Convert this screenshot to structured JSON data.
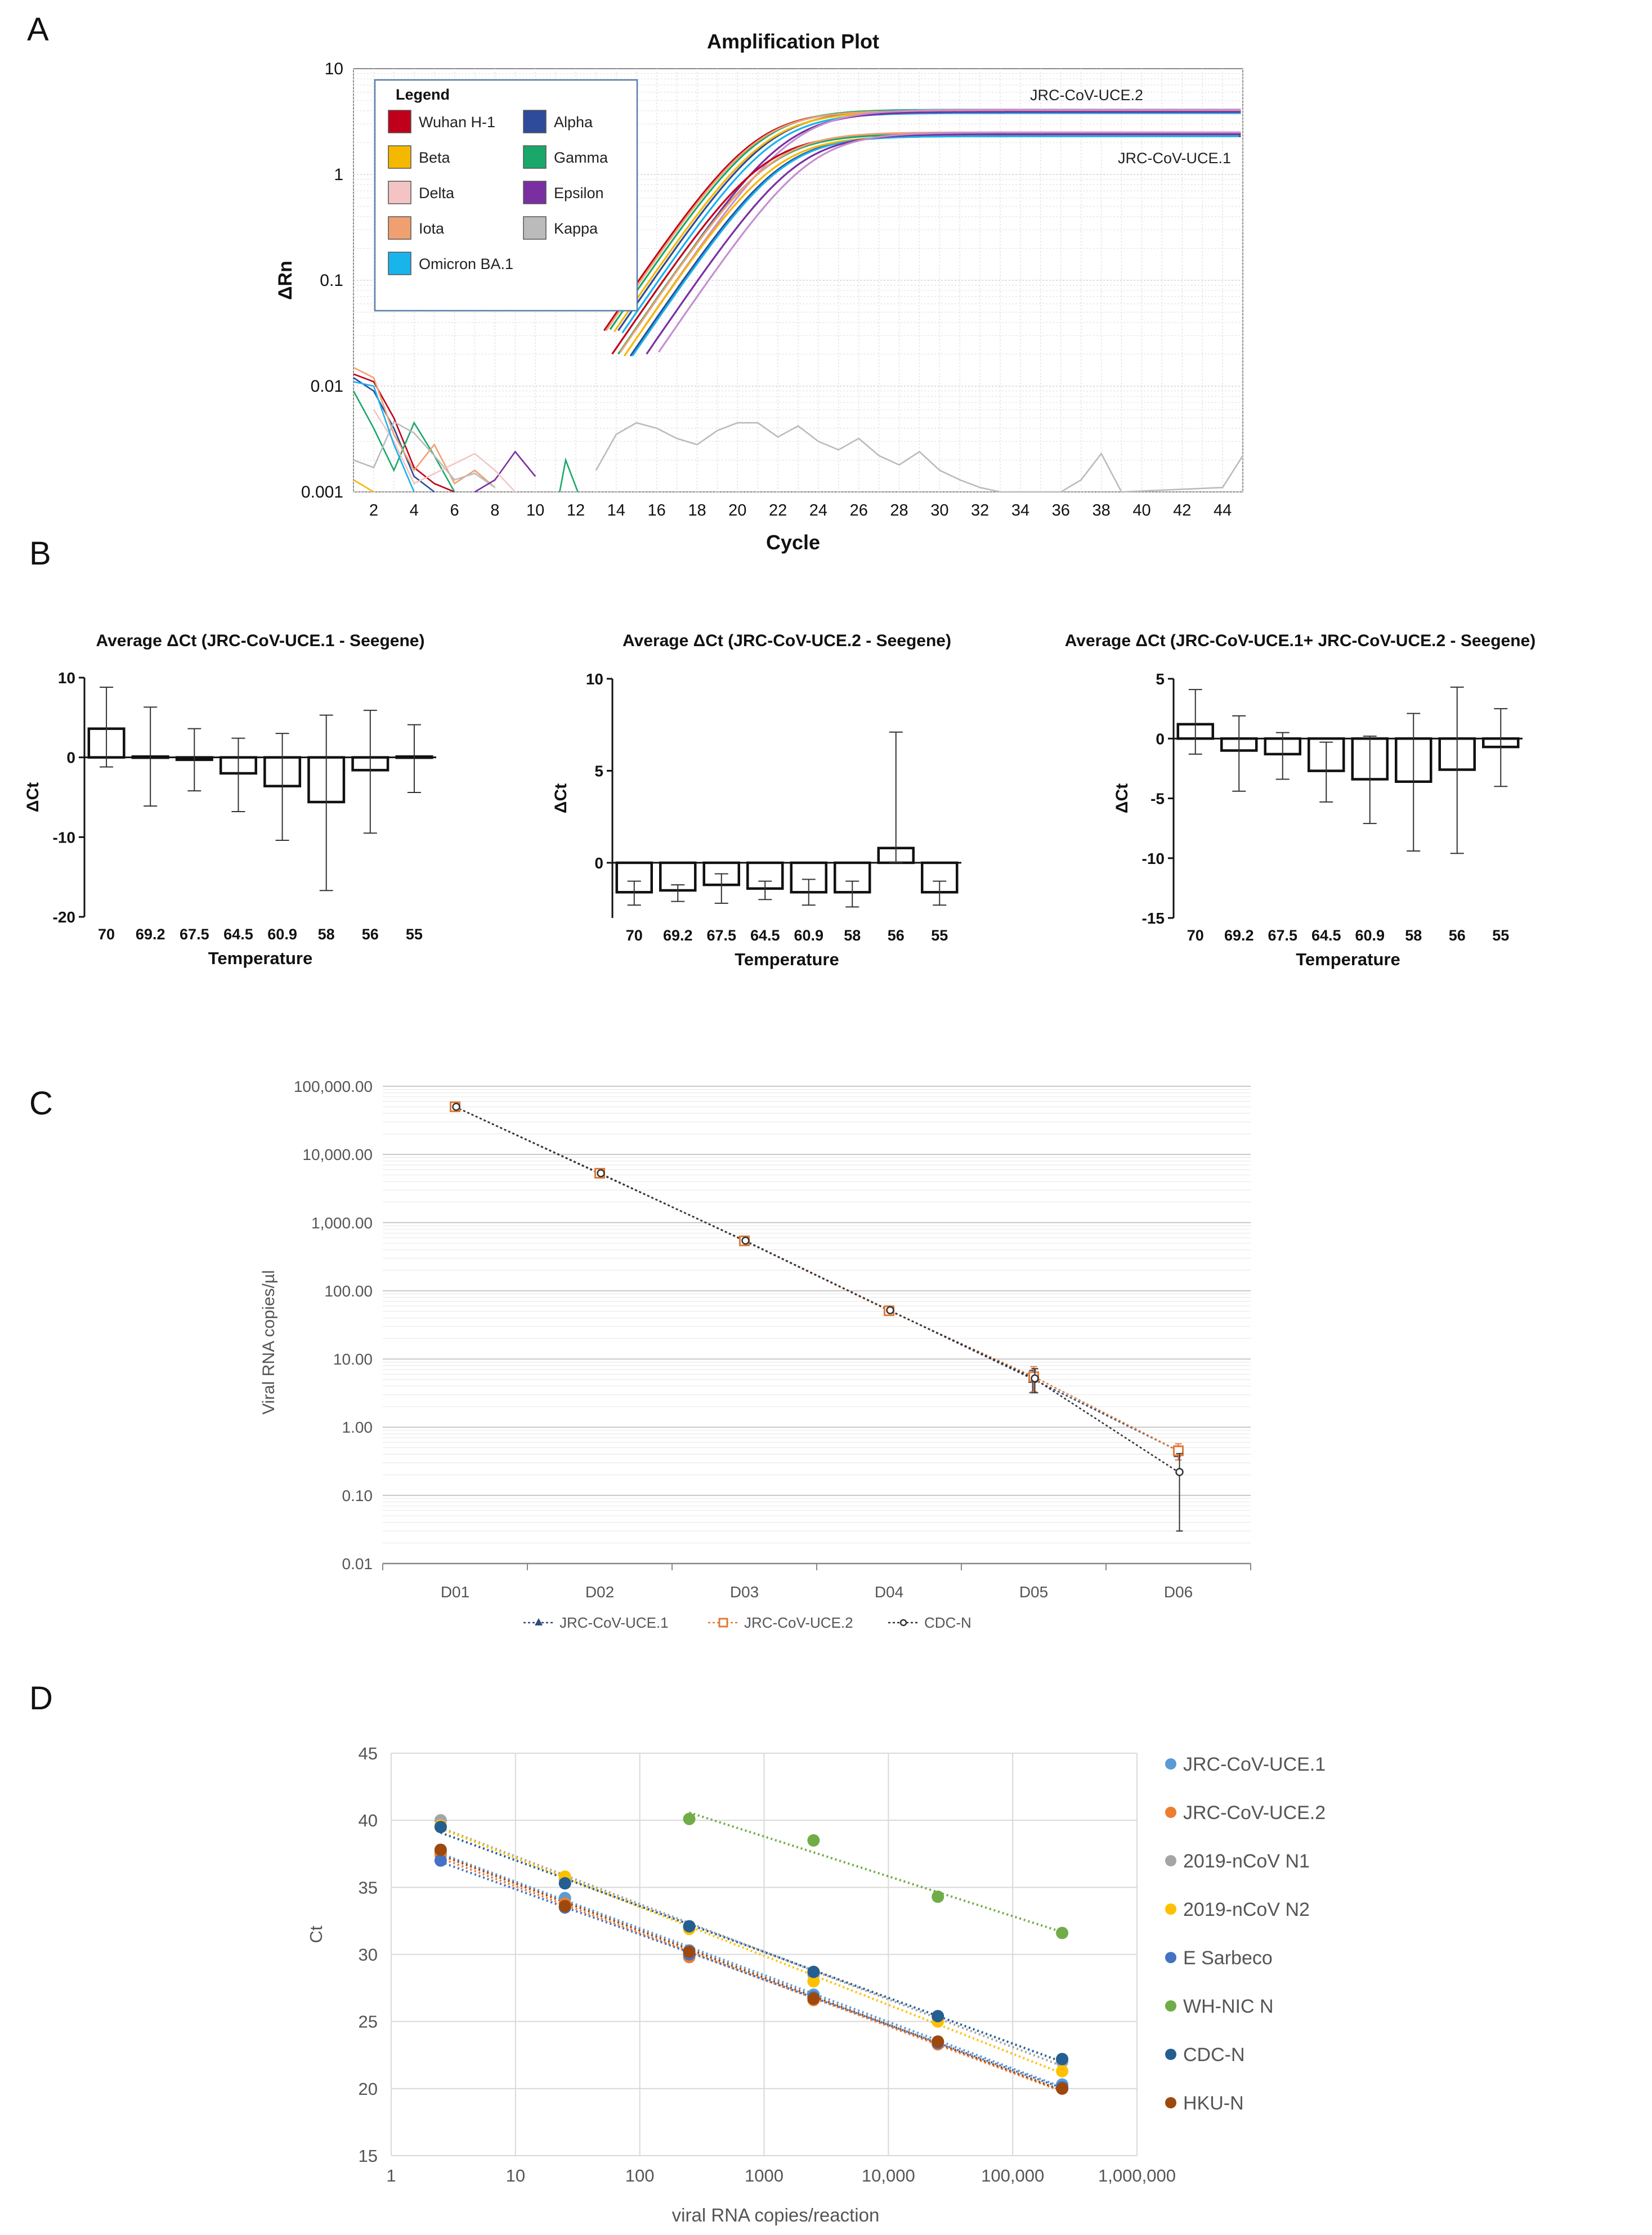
{
  "panels": {
    "a": "A",
    "b": "B",
    "c": "C",
    "d": "D"
  },
  "chart_data": [
    {
      "type": "line",
      "id": "amplification",
      "title": "Amplification Plot",
      "xlabel": "Cycle",
      "ylabel": "ΔRn",
      "yscale": "log",
      "ylim": [
        0.001,
        10
      ],
      "xlim": [
        1,
        45
      ],
      "xticks": [
        2,
        4,
        6,
        8,
        10,
        12,
        14,
        16,
        18,
        20,
        22,
        24,
        26,
        28,
        30,
        32,
        34,
        36,
        38,
        40,
        42,
        44
      ],
      "yticks": [
        0.001,
        0.01,
        0.1,
        1,
        10
      ],
      "ytick_labels": [
        "0.001",
        "0.01",
        "0.1",
        "1",
        "10"
      ],
      "legend_title": "Legend",
      "legend": [
        {
          "name": "Wuhan H-1",
          "color": "#c0001a"
        },
        {
          "name": "Alpha",
          "color": "#2d4b9a"
        },
        {
          "name": "Beta",
          "color": "#f5b800"
        },
        {
          "name": "Gamma",
          "color": "#1aa86a"
        },
        {
          "name": "Delta",
          "color": "#f4c4c4"
        },
        {
          "name": "Epsilon",
          "color": "#7a2fa0"
        },
        {
          "name": "Iota",
          "color": "#f0a070"
        },
        {
          "name": "Kappa",
          "color": "#bbbbbb"
        },
        {
          "name": "Omicron BA.1",
          "color": "#19b4ec"
        }
      ],
      "annotations": [
        "JRC-CoV-UCE.2",
        "JRC-CoV-UCE.1"
      ],
      "plateaus": {
        "JRC-CoV-UCE.2": 4.0,
        "JRC-CoV-UCE.1": 2.4
      },
      "curves": [
        {
          "color": "#c0001a",
          "ct": 17.6,
          "plateau": 4.0
        },
        {
          "color": "#2d4b9a",
          "ct": 18.3,
          "plateau": 4.0
        },
        {
          "color": "#1aa86a",
          "ct": 17.9,
          "plateau": 4.1
        },
        {
          "color": "#f5b800",
          "ct": 18.1,
          "plateau": 3.9
        },
        {
          "color": "#f0a070",
          "ct": 17.7,
          "plateau": 4.0
        },
        {
          "color": "#19b4ec",
          "ct": 18.5,
          "plateau": 3.8
        },
        {
          "color": "#7a2fa0",
          "ct": 19.1,
          "plateau": 3.9
        },
        {
          "color": "#c490d0",
          "ct": 19.5,
          "plateau": 4.1
        },
        {
          "color": "#c0001a",
          "ct": 18.0,
          "plateau": 2.4
        },
        {
          "color": "#2d4b9a",
          "ct": 18.9,
          "plateau": 2.3
        },
        {
          "color": "#1aa86a",
          "ct": 18.3,
          "plateau": 2.4
        },
        {
          "color": "#f5b800",
          "ct": 18.6,
          "plateau": 2.3
        },
        {
          "color": "#f0a070",
          "ct": 18.4,
          "plateau": 2.5
        },
        {
          "color": "#19b4ec",
          "ct": 19.0,
          "plateau": 2.3
        },
        {
          "color": "#7a2fa0",
          "ct": 19.7,
          "plateau": 2.4
        },
        {
          "color": "#c490d0",
          "ct": 20.3,
          "plateau": 2.5
        }
      ],
      "kappa_noise": [
        [
          13,
          0.0016
        ],
        [
          14,
          0.0035
        ],
        [
          15,
          0.0045
        ],
        [
          16,
          0.004
        ],
        [
          17,
          0.0032
        ],
        [
          18,
          0.0028
        ],
        [
          19,
          0.0038
        ],
        [
          20,
          0.0045
        ],
        [
          21,
          0.0045
        ],
        [
          22,
          0.0033
        ],
        [
          23,
          0.0042
        ],
        [
          24,
          0.003
        ],
        [
          25,
          0.0025
        ],
        [
          26,
          0.0032
        ],
        [
          27,
          0.0022
        ],
        [
          28,
          0.0018
        ],
        [
          29,
          0.0024
        ],
        [
          30,
          0.0016
        ],
        [
          31,
          0.0013
        ],
        [
          32,
          0.0011
        ],
        [
          33,
          0.001
        ],
        [
          36,
          0.001
        ],
        [
          37,
          0.0013
        ],
        [
          38,
          0.0023
        ],
        [
          39,
          0.001
        ],
        [
          44,
          0.0011
        ],
        [
          45,
          0.0022
        ]
      ],
      "early_noise": [
        {
          "color": "#c0001a",
          "points": [
            [
              1,
              0.013
            ],
            [
              2,
              0.011
            ],
            [
              3,
              0.005
            ],
            [
              4,
              0.0017
            ],
            [
              5,
              0.0012
            ],
            [
              6,
              0.001
            ]
          ]
        },
        {
          "color": "#2d4b9a",
          "points": [
            [
              1,
              0.012
            ],
            [
              2,
              0.009
            ],
            [
              3,
              0.004
            ],
            [
              4,
              0.0014
            ],
            [
              5,
              0.001
            ]
          ]
        },
        {
          "color": "#1aa86a",
          "points": [
            [
              1,
              0.009
            ],
            [
              2,
              0.004
            ],
            [
              3,
              0.0016
            ],
            [
              4,
              0.0045
            ],
            [
              5,
              0.0022
            ],
            [
              6,
              0.001
            ]
          ]
        },
        {
          "color": "#f0a070",
          "points": [
            [
              1,
              0.015
            ],
            [
              2,
              0.012
            ],
            [
              3,
              0.0035
            ],
            [
              4,
              0.0016
            ],
            [
              5,
              0.0028
            ],
            [
              6,
              0.0012
            ],
            [
              7,
              0.0016
            ],
            [
              8,
              0.0011
            ]
          ]
        },
        {
          "color": "#bbbbbb",
          "points": [
            [
              1,
              0.002
            ],
            [
              2,
              0.0017
            ],
            [
              3,
              0.0046
            ],
            [
              4,
              0.0036
            ],
            [
              5,
              0.0022
            ],
            [
              6,
              0.0013
            ],
            [
              7,
              0.0015
            ],
            [
              8,
              0.0011
            ]
          ]
        },
        {
          "color": "#7a2fa0",
          "points": [
            [
              7,
              0.001
            ],
            [
              8,
              0.0013
            ],
            [
              9,
              0.0024
            ],
            [
              10,
              0.0014
            ]
          ]
        },
        {
          "color": "#f4c4c4",
          "points": [
            [
              2,
              0.006
            ],
            [
              3,
              0.003
            ],
            [
              4,
              0.0012
            ],
            [
              7,
              0.0023
            ],
            [
              8,
              0.0016
            ],
            [
              9,
              0.001
            ]
          ]
        },
        {
          "color": "#19b4ec",
          "points": [
            [
              1,
              0.011
            ],
            [
              2,
              0.01
            ],
            [
              3,
              0.0028
            ],
            [
              4,
              0.001
            ]
          ]
        },
        {
          "color": "#f5b800",
          "points": [
            [
              1,
              0.0013
            ],
            [
              2,
              0.001
            ]
          ]
        },
        {
          "color": "#1aa86a",
          "points": [
            [
              11.2,
              0.001
            ],
            [
              11.5,
              0.002
            ],
            [
              12.1,
              0.001
            ]
          ]
        }
      ]
    },
    {
      "type": "bar",
      "id": "b1",
      "title": "Average ΔCt (JRC-CoV-UCE.1 - Seegene)",
      "xlabel": "Temperature",
      "ylabel": "ΔCt",
      "categories": [
        "70",
        "69.2",
        "67.5",
        "64.5",
        "60.9",
        "58",
        "56",
        "55"
      ],
      "values": [
        3.6,
        0.1,
        -0.3,
        -2.0,
        -3.6,
        -5.6,
        -1.6,
        0.1
      ],
      "err_up": [
        5.2,
        6.2,
        3.9,
        4.4,
        6.6,
        10.9,
        7.5,
        4.0
      ],
      "err_down": [
        4.8,
        6.2,
        3.9,
        4.8,
        6.8,
        11.1,
        7.9,
        4.5
      ],
      "ylim": [
        -20,
        10
      ],
      "yticks": [
        -20,
        -10,
        0,
        10
      ]
    },
    {
      "type": "bar",
      "id": "b2",
      "title": "Average ΔCt (JRC-CoV-UCE.2 - Seegene)",
      "xlabel": "Temperature",
      "ylabel": "ΔCt",
      "categories": [
        "70",
        "69.2",
        "67.5",
        "64.5",
        "60.9",
        "58",
        "56",
        "55"
      ],
      "values": [
        -1.6,
        -1.5,
        -1.2,
        -1.4,
        -1.6,
        -1.6,
        0.8,
        -1.6
      ],
      "err_up": [
        0.6,
        0.3,
        0.6,
        0.4,
        0.7,
        0.6,
        6.3,
        0.6
      ],
      "err_down": [
        0.7,
        0.6,
        1.0,
        0.6,
        0.7,
        0.8,
        0.8,
        0.7
      ],
      "ylim": [
        -3,
        10
      ],
      "yticks": [
        0,
        5,
        10
      ]
    },
    {
      "type": "bar",
      "id": "b3",
      "title": "Average ΔCt (JRC-CoV-UCE.1+ JRC-CoV-UCE.2 - Seegene)",
      "xlabel": "Temperature",
      "ylabel": "ΔCt",
      "categories": [
        "70",
        "69.2",
        "67.5",
        "64.5",
        "60.9",
        "58",
        "56",
        "55"
      ],
      "values": [
        1.2,
        -1.0,
        -1.3,
        -2.7,
        -3.4,
        -3.6,
        -2.6,
        -0.7
      ],
      "err_up": [
        2.9,
        2.9,
        1.8,
        2.4,
        3.6,
        5.7,
        6.9,
        3.2
      ],
      "err_down": [
        2.5,
        3.4,
        2.1,
        2.6,
        3.7,
        5.8,
        7.0,
        3.3
      ],
      "ylim": [
        -15,
        5
      ],
      "yticks": [
        -15,
        -10,
        -5,
        0,
        5
      ]
    },
    {
      "type": "line",
      "id": "c",
      "ylabel": "Viral RNA copies/µl",
      "yscale": "log",
      "ylim": [
        0.01,
        100000
      ],
      "yticks": [
        0.01,
        0.1,
        1,
        10,
        100,
        1000,
        10000,
        100000
      ],
      "ytick_labels": [
        "0.01",
        "0.10",
        "1.00",
        "10.00",
        "100.00",
        "1,000.00",
        "10,000.00",
        "100,000.00"
      ],
      "categories": [
        "D01",
        "D02",
        "D03",
        "D04",
        "D05",
        "D06"
      ],
      "series": [
        {
          "name": "JRC-CoV-UCE.1",
          "color": "#2e4a7e",
          "marker": "triangle",
          "values": [
            50000,
            5200,
            550,
            52,
            5.0,
            0.45
          ],
          "err": [
            1500,
            200,
            30,
            3,
            1.8,
            0.08
          ]
        },
        {
          "name": "JRC-CoV-UCE.2",
          "color": "#e07b39",
          "marker": "square",
          "values": [
            50000,
            5300,
            540,
            51,
            5.5,
            0.45
          ],
          "err": [
            1500,
            200,
            30,
            3,
            2.2,
            0.12
          ]
        },
        {
          "name": "CDC-N",
          "color": "#333333",
          "marker": "circle",
          "values": [
            50000,
            5300,
            545,
            52,
            5.2,
            0.22
          ],
          "err": [
            1500,
            200,
            30,
            3,
            2.0,
            0.19
          ]
        }
      ]
    },
    {
      "type": "scatter",
      "id": "d",
      "xlabel": "viral RNA copies/reaction",
      "ylabel": "Ct",
      "xscale": "log",
      "xlim": [
        1,
        1000000
      ],
      "ylim": [
        15,
        45
      ],
      "xticks": [
        1,
        10,
        100,
        1000,
        10000,
        100000,
        1000000
      ],
      "xtick_labels": [
        "1",
        "10",
        "100",
        "1000",
        "10,000",
        "100,000",
        "1,000,000"
      ],
      "yticks": [
        15,
        20,
        25,
        30,
        35,
        40,
        45
      ],
      "series": [
        {
          "name": "JRC-CoV-UCE.1",
          "color": "#5b9bd5",
          "x": [
            2.5,
            25,
            250,
            2500,
            25000,
            250000
          ],
          "y": [
            37.6,
            34.2,
            30.3,
            27.0,
            23.5,
            20.3
          ]
        },
        {
          "name": "JRC-CoV-UCE.2",
          "color": "#ed7d31",
          "x": [
            2.5,
            25,
            250,
            2500,
            25000,
            250000
          ],
          "y": [
            37.4,
            33.8,
            29.8,
            26.6,
            23.3,
            20.0
          ]
        },
        {
          "name": "2019-nCoV N1",
          "color": "#a5a5a5",
          "x": [
            2.5,
            25,
            250,
            2500,
            25000,
            250000
          ],
          "y": [
            40.0,
            35.6,
            32.0,
            28.5,
            25.3,
            22.0
          ]
        },
        {
          "name": "2019-nCoV N2",
          "color": "#ffc000",
          "x": [
            2.5,
            25,
            250,
            2500,
            25000,
            250000
          ],
          "y": [
            39.6,
            35.8,
            31.9,
            28.0,
            25.0,
            21.3
          ]
        },
        {
          "name": "E Sarbeco",
          "color": "#4472c4",
          "x": [
            2.5,
            25,
            250,
            2500,
            25000,
            250000
          ],
          "y": [
            37.0,
            33.5,
            30.0,
            26.8,
            23.4,
            20.1
          ]
        },
        {
          "name": "WH-NIC N",
          "color": "#70ad47",
          "x": [
            250,
            2500,
            25000,
            250000
          ],
          "y": [
            40.1,
            38.5,
            34.3,
            31.6
          ]
        },
        {
          "name": "CDC-N",
          "color": "#255e91",
          "x": [
            2.5,
            25,
            250,
            2500,
            25000,
            250000
          ],
          "y": [
            39.5,
            35.3,
            32.1,
            28.7,
            25.4,
            22.2
          ]
        },
        {
          "name": "HKU-N",
          "color": "#9e480e",
          "x": [
            2.5,
            25,
            250,
            2500,
            25000,
            250000
          ],
          "y": [
            37.8,
            33.6,
            30.2,
            26.7,
            23.5,
            20.0
          ]
        }
      ]
    }
  ]
}
